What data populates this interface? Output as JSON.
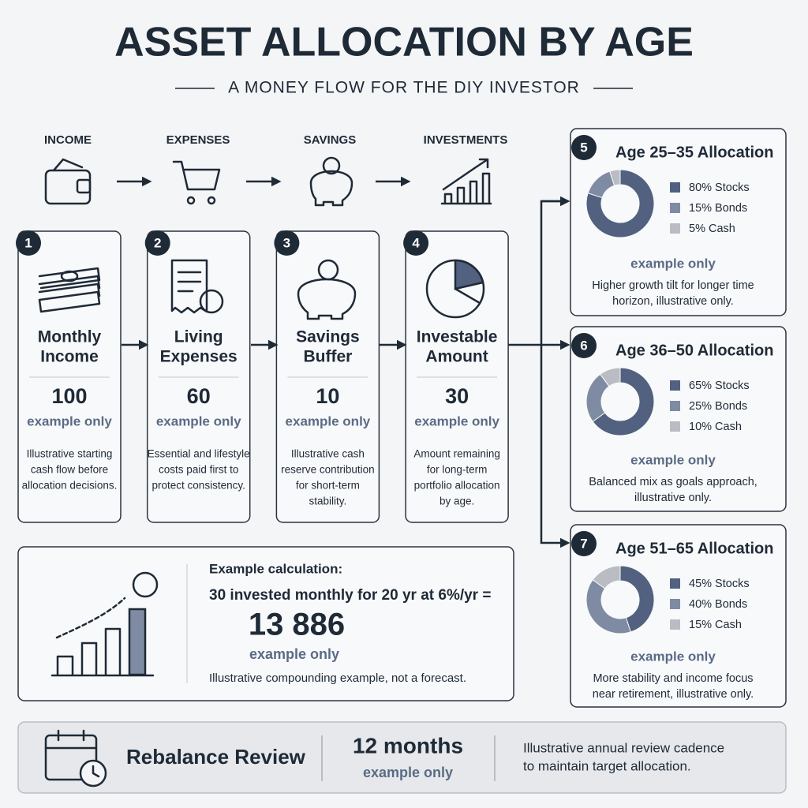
{
  "header": {
    "title": "ASSET ALLOCATION BY AGE",
    "subtitle": "A MONEY FLOW FOR THE DIY INVESTOR"
  },
  "flow": [
    "INCOME",
    "EXPENSES",
    "SAVINGS",
    "INVESTMENTS"
  ],
  "steps": [
    {
      "number": 1,
      "title": [
        "Monthly",
        "Income"
      ],
      "amount": 100,
      "note": "example only",
      "description": [
        "Illustrative starting",
        "cash flow before",
        "allocation decisions."
      ]
    },
    {
      "number": 2,
      "title": [
        "Living",
        "Expenses"
      ],
      "amount": 60,
      "note": "example only",
      "description": [
        "Essential and lifestyle",
        "costs paid first to",
        "protect consistency."
      ]
    },
    {
      "number": 3,
      "title": [
        "Savings",
        "Buffer"
      ],
      "amount": 10,
      "note": "example only",
      "description": [
        "Illustrative cash",
        "reserve contribution",
        "for short-term",
        "stability."
      ]
    },
    {
      "number": 4,
      "title": [
        "Investable",
        "Amount"
      ],
      "amount": 30,
      "note": "example only",
      "description": [
        "Amount remaining",
        "for long-term",
        "portfolio allocation",
        "by age."
      ]
    }
  ],
  "allocations": [
    {
      "number": 5,
      "title": "Age 25–35 Allocation",
      "segments": [
        {
          "value": 80,
          "label": "80% Stocks",
          "color": "#51617f"
        },
        {
          "value": 15,
          "label": "15% Bonds",
          "color": "#7f8ba2"
        },
        {
          "value": 5,
          "label": "5% Cash",
          "color": "#b9bcc2"
        }
      ],
      "note": "example only",
      "description": [
        "Higher growth tilt for longer time",
        "horizon, illustrative only."
      ]
    },
    {
      "number": 6,
      "title": "Age 36–50 Allocation",
      "segments": [
        {
          "value": 65,
          "label": "65% Stocks",
          "color": "#51617f"
        },
        {
          "value": 25,
          "label": "25% Bonds",
          "color": "#7f8ba2"
        },
        {
          "value": 10,
          "label": "10% Cash",
          "color": "#b9bcc2"
        }
      ],
      "note": "example only",
      "description": [
        "Balanced mix as goals approach,",
        "illustrative only."
      ]
    },
    {
      "number": 7,
      "title": "Age 51–65 Allocation",
      "segments": [
        {
          "value": 45,
          "label": "45% Stocks",
          "color": "#51617f"
        },
        {
          "value": 40,
          "label": "40% Bonds",
          "color": "#7f8ba2"
        },
        {
          "value": 15,
          "label": "15% Cash",
          "color": "#b9bcc2"
        }
      ],
      "note": "example only",
      "description": [
        "More stability and income focus",
        "near retirement, illustrative only."
      ]
    }
  ],
  "calculation": {
    "heading": "Example calculation:",
    "formula": "30 invested monthly for 20 yr at 6%/yr =",
    "result": "13 886",
    "note": "example only",
    "caption": "Illustrative compounding example, not a forecast."
  },
  "review": {
    "title": "Rebalance Review",
    "period": "12 months",
    "note": "example only",
    "description": [
      "Illustrative annual review cadence",
      "to maintain target allocation."
    ]
  }
}
